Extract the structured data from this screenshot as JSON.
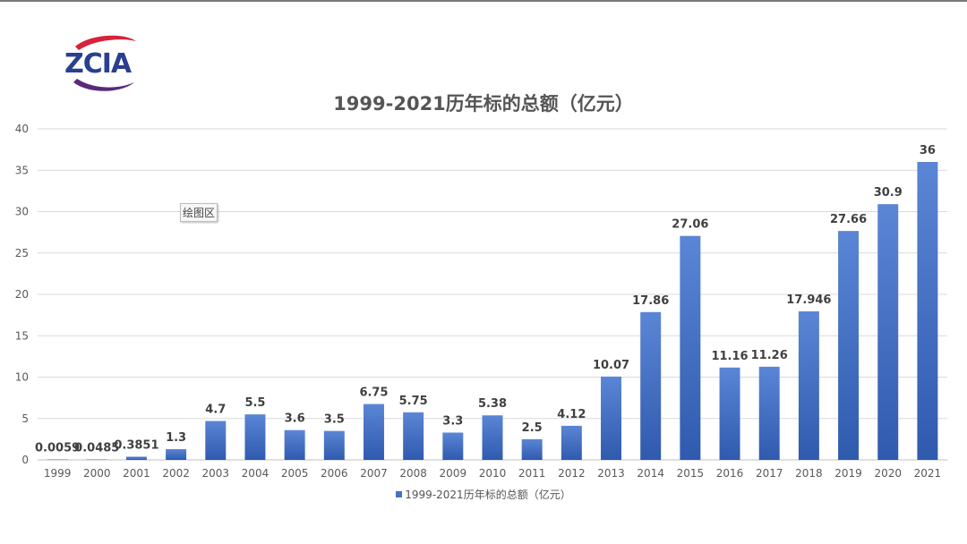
{
  "brand": {
    "logo_text": "ZCIA"
  },
  "plot_area_tag": "绘图区",
  "chart_data": {
    "type": "bar",
    "title": "1999-2021历年标的总额（亿元）",
    "xlabel": "",
    "ylabel": "",
    "ylim": [
      0,
      40
    ],
    "y_ticks": [
      0,
      5,
      10,
      15,
      20,
      25,
      30,
      35,
      40
    ],
    "grid": true,
    "legend_position": "bottom",
    "bar_color": "#4472c4",
    "categories": [
      "1999",
      "2000",
      "2001",
      "2002",
      "2003",
      "2004",
      "2005",
      "2006",
      "2007",
      "2008",
      "2009",
      "2010",
      "2011",
      "2012",
      "2013",
      "2014",
      "2015",
      "2016",
      "2017",
      "2018",
      "2019",
      "2020",
      "2021"
    ],
    "series": [
      {
        "name": "1999-2021历年标的总额（亿元）",
        "values": [
          0.0059,
          0.0485,
          0.3851,
          1.3,
          4.7,
          5.5,
          3.6,
          3.5,
          6.75,
          5.75,
          3.3,
          5.38,
          2.5,
          4.12,
          10.07,
          17.86,
          27.06,
          11.16,
          11.26,
          17.946,
          27.66,
          30.9,
          36
        ],
        "labels": [
          "0.0059",
          "0.0485",
          "0.3851",
          "1.3",
          "4.7",
          "5.5",
          "3.6",
          "3.5",
          "6.75",
          "5.75",
          "3.3",
          "5.38",
          "2.5",
          "4.12",
          "10.07",
          "17.86",
          "27.06",
          "11.16",
          "11.26",
          "17.946",
          "27.66",
          "30.9",
          "36"
        ]
      }
    ]
  }
}
